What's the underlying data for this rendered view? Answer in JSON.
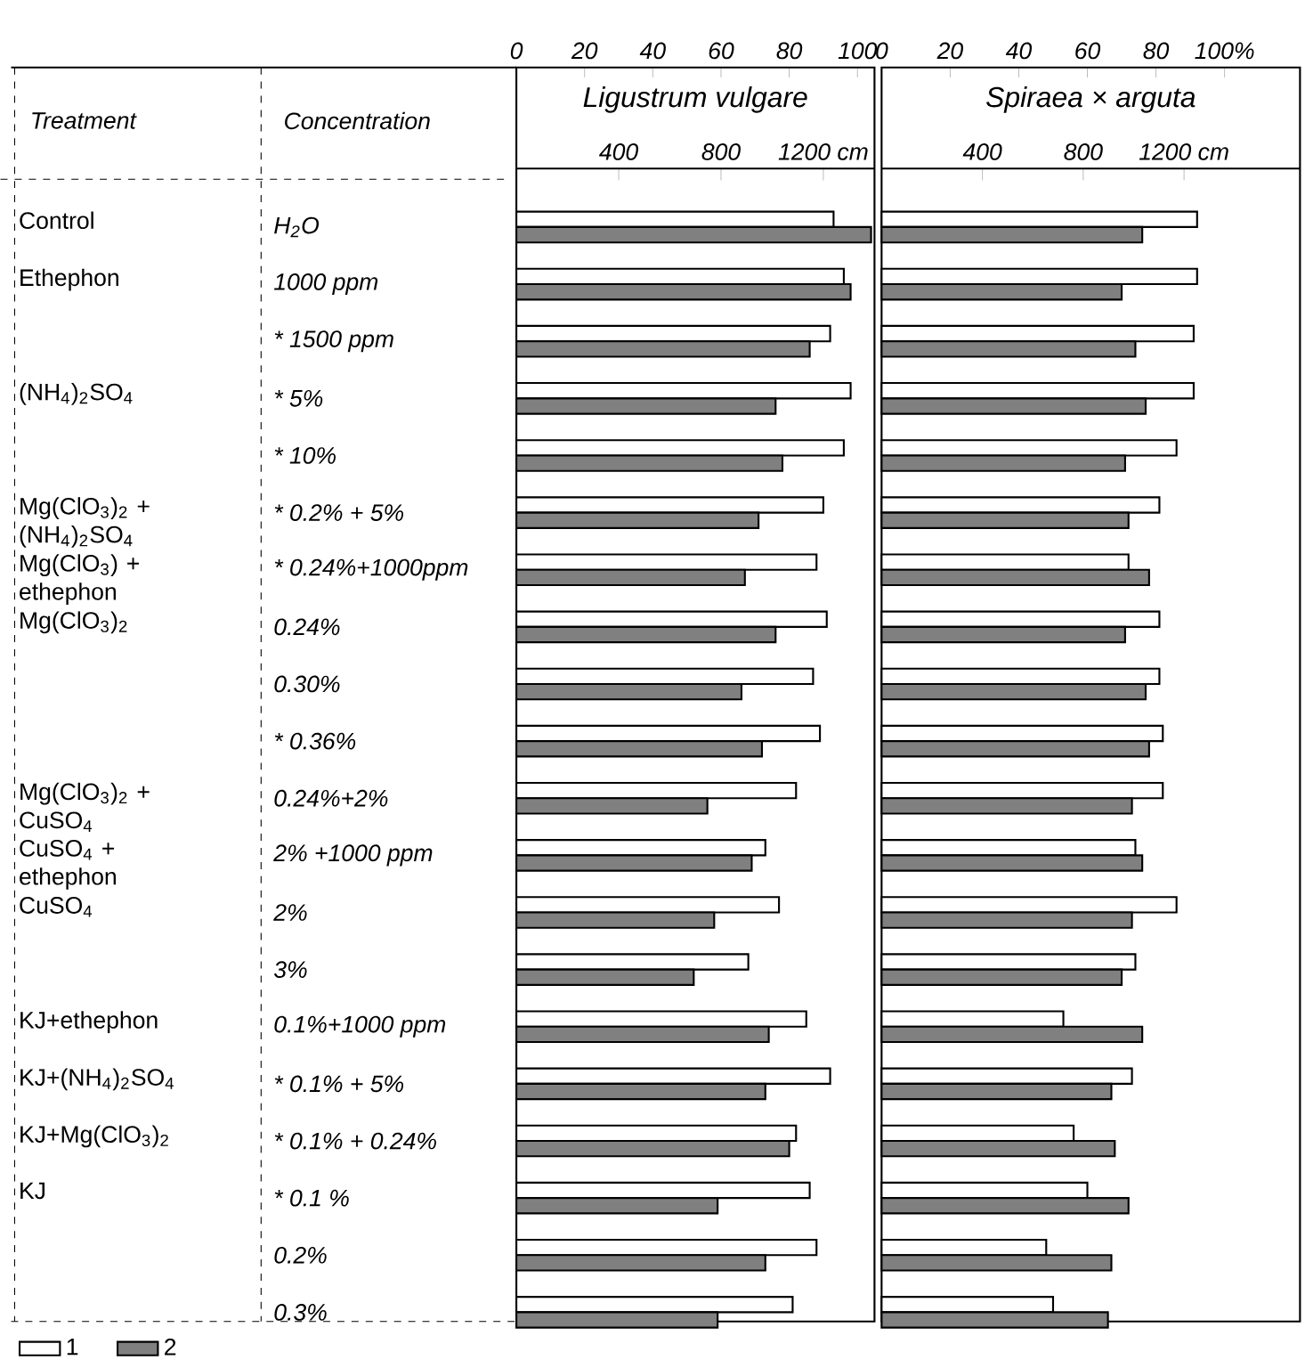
{
  "chart_data": [
    {
      "type": "bar",
      "orientation": "horizontal",
      "title": "Ligustrum vulgare",
      "categories": [
        "H$_{2}$O",
        "1000 ppm",
        "* 1500 ppm",
        "* 5%",
        "* 10%",
        "* 0.2% + 5%",
        "* 0.24%+1000ppm",
        "0.24%",
        "0.30%",
        "* 0.36%",
        "0.24%+2%",
        "2% +1000 ppm",
        "2%",
        "3%",
        "0.1%+1000 ppm",
        "* 0.1% + 5%",
        "* 0.1% + 0.24%",
        "* 0.1 %",
        "0.2%",
        "0.3%"
      ],
      "series": [
        {
          "name": "1",
          "color": "#ffffff",
          "values": [
            93,
            96,
            92,
            98,
            96,
            90,
            88,
            91,
            87,
            89,
            82,
            73,
            77,
            68,
            85,
            92,
            82,
            86,
            88,
            81
          ]
        },
        {
          "name": "2",
          "color": "#808080",
          "values": [
            104,
            98,
            86,
            76,
            78,
            71,
            67,
            76,
            66,
            72,
            56,
            69,
            58,
            52,
            74,
            73,
            80,
            59,
            73,
            59
          ]
        }
      ],
      "xlim": [
        0,
        105
      ],
      "xticks": [
        0,
        20,
        40,
        60,
        80,
        100
      ],
      "x2lim": [
        0,
        1400
      ],
      "x2ticks": [
        400,
        800,
        {
          "value": 1200,
          "label": "1200 cm"
        }
      ],
      "legend": "bottom left",
      "annotations": [
        "Treatment",
        "Concentration",
        "Control",
        "Ethephon",
        "(NH$_{4}$)$_{2}$SO$_{4}$",
        "Mg(ClO$_{3}$)$_{2}$ + (NH$_{4}$)$_{2}$SO$_{4}$",
        "Mg(ClO$_{3}$) + ethephon",
        "Mg(ClO$_{3}$)$_{2}$",
        "Mg(ClO$_{3}$)$_{2}$ + CuSO$_{4}$",
        "CuSO$_{4}$ + ethephon",
        "CuSO$_{4}$",
        "KJ+ethephon",
        "KJ+(NH$_{4}$)$_{2}$SO$_{4}$",
        "KJ+Mg(ClO$_{3}$)$_{2}$",
        "KJ"
      ]
    },
    {
      "type": "bar",
      "orientation": "horizontal",
      "title": "Spiraea × arguta",
      "categories": [
        null,
        null,
        null,
        null,
        null,
        null,
        null,
        null,
        null,
        null,
        null,
        null,
        null,
        null,
        null,
        null,
        null,
        null,
        null,
        null
      ],
      "series": [
        {
          "color": "#ffffff",
          "values": [
            92,
            92,
            91,
            91,
            86,
            81,
            72,
            81,
            81,
            82,
            82,
            74,
            86,
            74,
            53,
            73,
            56,
            60,
            48,
            50
          ]
        },
        {
          "color": "#808080",
          "values": [
            76,
            70,
            74,
            77,
            71,
            72,
            78,
            71,
            77,
            78,
            73,
            76,
            73,
            70,
            76,
            67,
            68,
            72,
            67,
            66
          ]
        }
      ],
      "xlim": [
        0,
        122
      ],
      "xticks": [
        0,
        20,
        40,
        60,
        80,
        {
          "value": 100,
          "label": "100%"
        }
      ],
      "x2lim": [
        0,
        1660
      ],
      "x2ticks": [
        400,
        800,
        {
          "value": 1200,
          "label": "1200 cm"
        }
      ],
      "tick_labels": "x"
    }
  ]
}
